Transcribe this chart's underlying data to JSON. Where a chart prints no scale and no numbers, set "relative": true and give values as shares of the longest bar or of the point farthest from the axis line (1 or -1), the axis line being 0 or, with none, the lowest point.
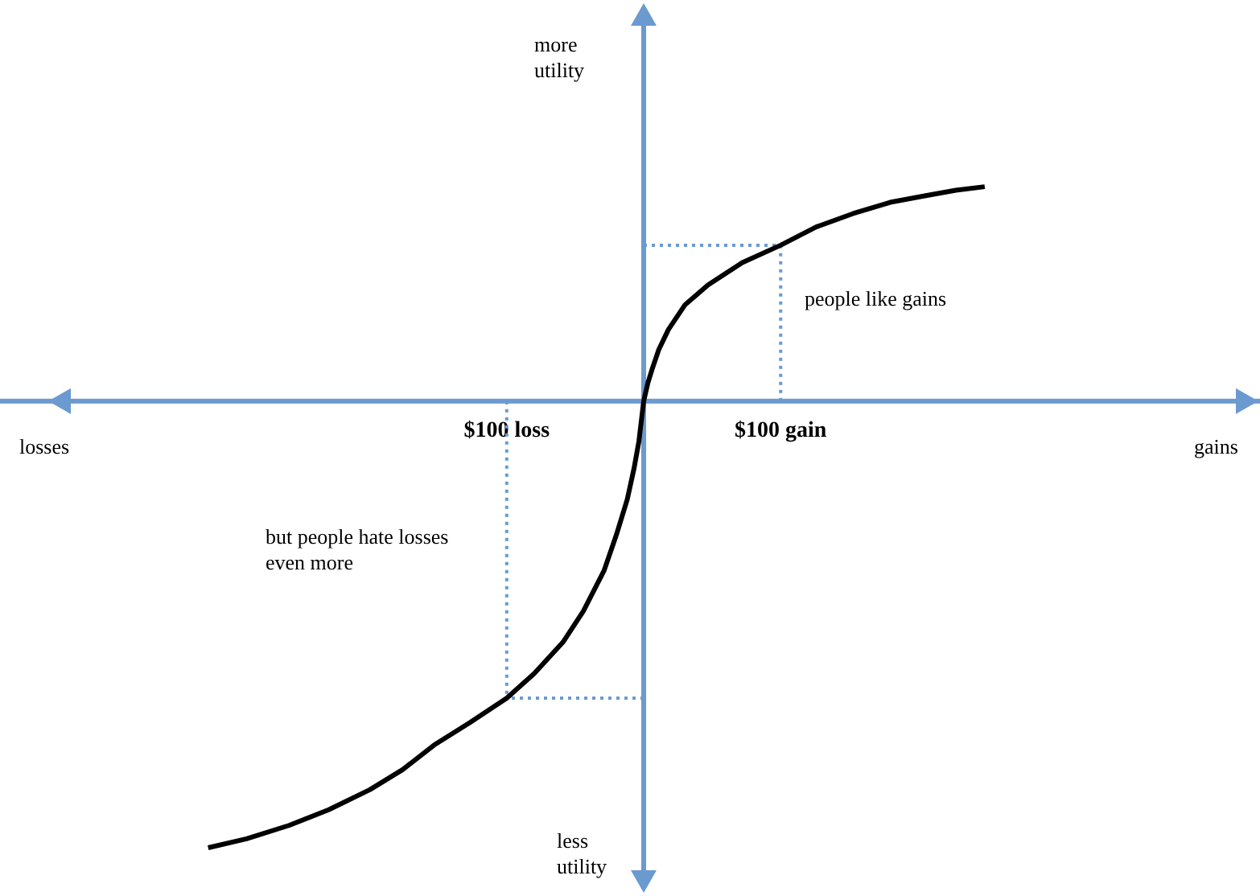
{
  "chart_data": {
    "type": "line",
    "relative": true,
    "marker": "none",
    "x": [
      -318,
      -290,
      -259,
      -230,
      -200,
      -176,
      -153,
      -127,
      -100,
      -80,
      -59,
      -44,
      -29,
      -20,
      -12,
      -7,
      -3.5,
      0,
      3,
      6,
      11,
      18,
      30,
      47,
      72,
      100,
      126,
      153,
      180,
      206,
      228,
      249
    ],
    "series": [
      {
        "color": "#000000",
        "values": [
          -1.0,
          -0.98,
          -0.95,
          -0.915,
          -0.87,
          -0.825,
          -0.77,
          -0.72,
          -0.665,
          -0.61,
          -0.54,
          -0.47,
          -0.38,
          -0.3,
          -0.22,
          -0.15,
          -0.09,
          0,
          0.04,
          0.07,
          0.115,
          0.16,
          0.215,
          0.26,
          0.31,
          0.349,
          0.39,
          0.42,
          0.445,
          0.46,
          0.472,
          0.48
        ]
      }
    ],
    "xlim": [
      -470,
      450
    ],
    "xticks": [
      {
        "value": -100,
        "label": "$100 loss"
      },
      {
        "value": 100,
        "label": "$100 gain"
      }
    ],
    "ref_lines": [
      {
        "axis": "x",
        "value": 0,
        "color": "#6a9ad0"
      },
      {
        "axis": "x",
        "value": -100,
        "color": "#6a9ad0",
        "line_style": "dotted"
      },
      {
        "axis": "x",
        "value": 100,
        "color": "#6a9ad0",
        "line_style": "dotted"
      },
      {
        "axis": "y",
        "value": 0.349,
        "color": "#6a9ad0",
        "line_style": "dotted"
      },
      {
        "axis": "y",
        "value": -0.665,
        "color": "#6a9ad0",
        "line_style": "dotted"
      }
    ],
    "annotations": [
      "more utility",
      "less utility",
      "losses",
      "gains",
      "people like gains",
      "but people hate losses even more"
    ]
  }
}
